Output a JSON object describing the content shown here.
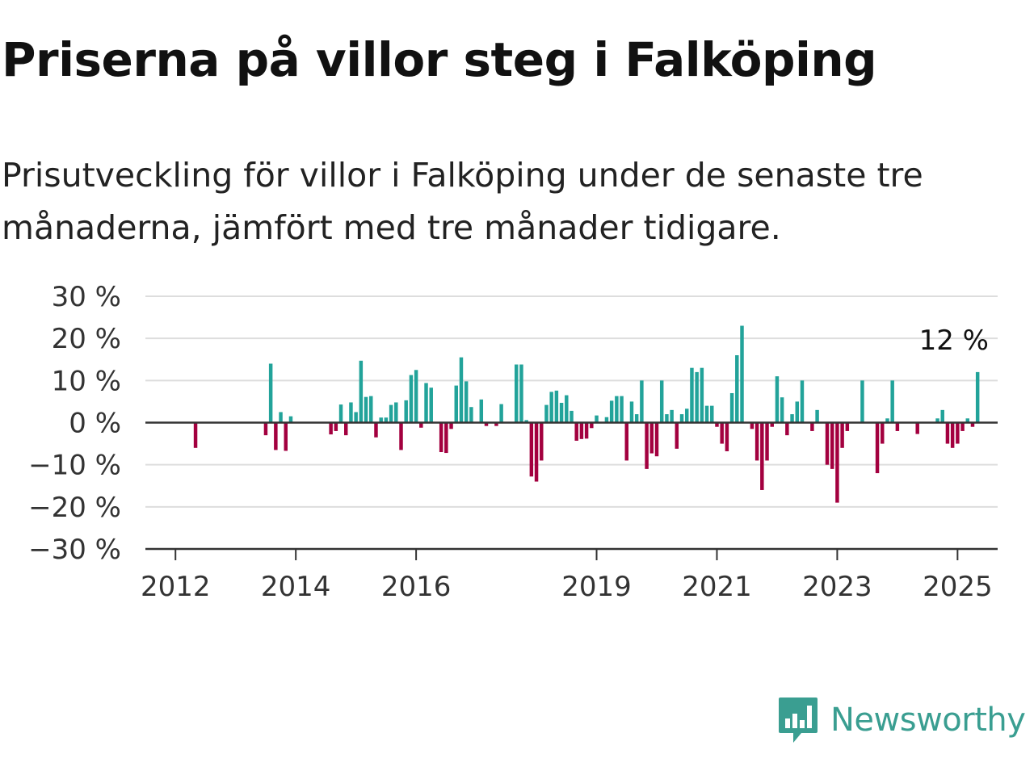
{
  "title": "Priserna på villor steg i Falköping",
  "subtitle": "Prisutveckling för villor i Falköping under de senaste tre månaderna, jämfört med tre månader tidigare.",
  "logo": {
    "text": "Newsworthy",
    "icon": "newsworthy-logo-icon"
  },
  "colors": {
    "positive": "#22a39a",
    "negative": "#a3003f",
    "grid": "#dddddd",
    "axis": "#333333",
    "logo": "#3a9e91"
  },
  "chart_data": {
    "type": "bar",
    "title": "Priserna på villor steg i Falköping",
    "subtitle": "Prisutveckling för villor i Falköping under de senaste tre månaderna, jämfört med tre månader tidigare.",
    "ylim": [
      -30,
      30
    ],
    "ytick_values": [
      30,
      20,
      10,
      0,
      -10,
      -20,
      -30
    ],
    "ytick_labels": [
      "30 %",
      "20 %",
      "10 %",
      "0 %",
      "−10 %",
      "−20 %",
      "−30 %"
    ],
    "xlim": [
      "2011-07",
      "2025-09"
    ],
    "xtick_values": [
      "2012-01",
      "2014-01",
      "2016-01",
      "2019-01",
      "2021-01",
      "2023-01",
      "2025-01"
    ],
    "xtick_labels": [
      "2012",
      "2014",
      "2016",
      "2019",
      "2021",
      "2023",
      "2025"
    ],
    "grid": true,
    "series": [
      {
        "data": [
          [
            "2012-05",
            -6
          ],
          [
            "2013-07",
            -3
          ],
          [
            "2013-08",
            14
          ],
          [
            "2013-09",
            -6.5
          ],
          [
            "2013-10",
            2.5
          ],
          [
            "2013-11",
            -6.7
          ],
          [
            "2013-12",
            1.5
          ],
          [
            "2014-08",
            -2.8
          ],
          [
            "2014-09",
            -2
          ],
          [
            "2014-10",
            4.3
          ],
          [
            "2014-11",
            -3
          ],
          [
            "2014-12",
            4.8
          ],
          [
            "2015-01",
            2.5
          ],
          [
            "2015-02",
            14.7
          ],
          [
            "2015-03",
            6.1
          ],
          [
            "2015-04",
            6.3
          ],
          [
            "2015-05",
            -3.5
          ],
          [
            "2015-06",
            1.2
          ],
          [
            "2015-07",
            1.2
          ],
          [
            "2015-08",
            4.2
          ],
          [
            "2015-09",
            4.8
          ],
          [
            "2015-10",
            -6.5
          ],
          [
            "2015-11",
            5.3
          ],
          [
            "2015-12",
            11.3
          ],
          [
            "2016-01",
            12.5
          ],
          [
            "2016-02",
            -1.2
          ],
          [
            "2016-03",
            9.4
          ],
          [
            "2016-04",
            8.3
          ],
          [
            "2016-06",
            -7
          ],
          [
            "2016-07",
            -7.2
          ],
          [
            "2016-08",
            -1.5
          ],
          [
            "2016-09",
            8.8
          ],
          [
            "2016-10",
            15.5
          ],
          [
            "2016-11",
            9.8
          ],
          [
            "2016-12",
            3.7
          ],
          [
            "2017-02",
            5.5
          ],
          [
            "2017-03",
            -0.8
          ],
          [
            "2017-05",
            -0.8
          ],
          [
            "2017-06",
            4.4
          ],
          [
            "2017-09",
            13.8
          ],
          [
            "2017-10",
            13.8
          ],
          [
            "2017-11",
            0.6
          ],
          [
            "2017-12",
            -12.8
          ],
          [
            "2018-01",
            -14
          ],
          [
            "2018-02",
            -9
          ],
          [
            "2018-03",
            4.2
          ],
          [
            "2018-04",
            7.3
          ],
          [
            "2018-05",
            7.6
          ],
          [
            "2018-06",
            4.7
          ],
          [
            "2018-07",
            6.5
          ],
          [
            "2018-08",
            2.8
          ],
          [
            "2018-09",
            -4.3
          ],
          [
            "2018-10",
            -3.9
          ],
          [
            "2018-11",
            -3.8
          ],
          [
            "2018-12",
            -1.3
          ],
          [
            "2019-01",
            1.7
          ],
          [
            "2019-03",
            1.3
          ],
          [
            "2019-04",
            5.2
          ],
          [
            "2019-05",
            6.3
          ],
          [
            "2019-06",
            6.3
          ],
          [
            "2019-07",
            -9
          ],
          [
            "2019-08",
            5
          ],
          [
            "2019-09",
            2
          ],
          [
            "2019-10",
            10
          ],
          [
            "2019-11",
            -11
          ],
          [
            "2019-12",
            -7.3
          ],
          [
            "2020-01",
            -8
          ],
          [
            "2020-02",
            10
          ],
          [
            "2020-03",
            2
          ],
          [
            "2020-04",
            3
          ],
          [
            "2020-05",
            -6.2
          ],
          [
            "2020-06",
            2
          ],
          [
            "2020-07",
            3.3
          ],
          [
            "2020-08",
            13
          ],
          [
            "2020-09",
            12
          ],
          [
            "2020-10",
            13
          ],
          [
            "2020-11",
            4
          ],
          [
            "2020-12",
            4
          ],
          [
            "2021-01",
            -1
          ],
          [
            "2021-02",
            -5
          ],
          [
            "2021-03",
            -6.8
          ],
          [
            "2021-04",
            7
          ],
          [
            "2021-05",
            16
          ],
          [
            "2021-06",
            23
          ],
          [
            "2021-08",
            -1.5
          ],
          [
            "2021-09",
            -9
          ],
          [
            "2021-10",
            -16
          ],
          [
            "2021-11",
            -9
          ],
          [
            "2021-12",
            -1
          ],
          [
            "2022-01",
            11
          ],
          [
            "2022-02",
            6
          ],
          [
            "2022-03",
            -3
          ],
          [
            "2022-04",
            2
          ],
          [
            "2022-05",
            5
          ],
          [
            "2022-06",
            10
          ],
          [
            "2022-08",
            -2
          ],
          [
            "2022-09",
            3
          ],
          [
            "2022-11",
            -10
          ],
          [
            "2022-12",
            -11
          ],
          [
            "2023-01",
            -19
          ],
          [
            "2023-02",
            -6
          ],
          [
            "2023-03",
            -2
          ],
          [
            "2023-06",
            10
          ],
          [
            "2023-09",
            -12
          ],
          [
            "2023-10",
            -5
          ],
          [
            "2023-11",
            1
          ],
          [
            "2023-12",
            10
          ],
          [
            "2024-01",
            -2
          ],
          [
            "2024-05",
            -2.7
          ],
          [
            "2024-09",
            1
          ],
          [
            "2024-10",
            3
          ],
          [
            "2024-11",
            -5
          ],
          [
            "2024-12",
            -6
          ],
          [
            "2025-01",
            -5
          ],
          [
            "2025-02",
            -2
          ],
          [
            "2025-03",
            1
          ],
          [
            "2025-04",
            -1
          ],
          [
            "2025-05",
            12
          ]
        ]
      }
    ],
    "annotations": [
      {
        "x": "2025-05",
        "y": 12,
        "text": "12 %"
      }
    ]
  }
}
